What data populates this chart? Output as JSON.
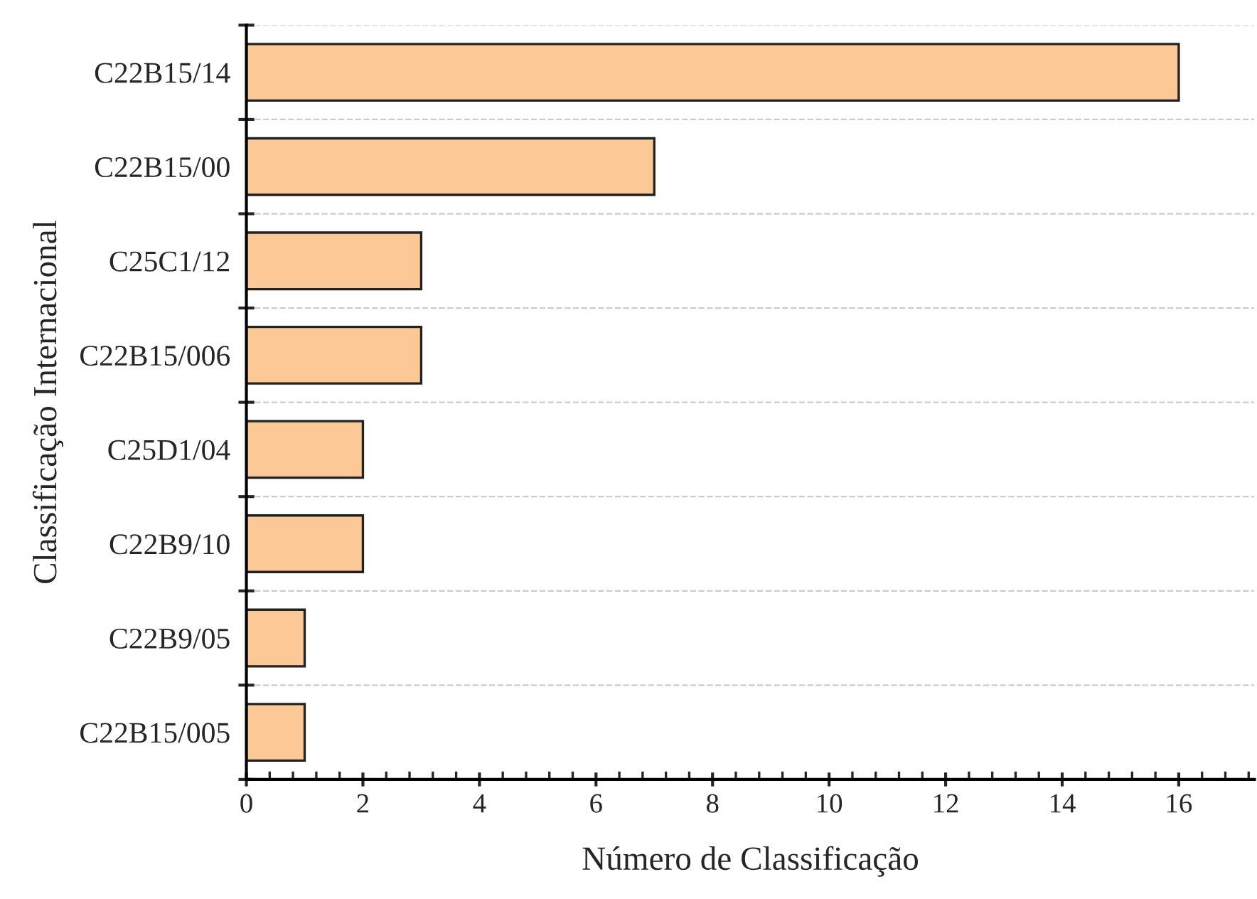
{
  "chart_data": {
    "type": "bar",
    "orientation": "horizontal",
    "xlabel": "Número de Classificação",
    "ylabel": "Classificação Internacional",
    "categories": [
      "C22B15/14",
      "C22B15/00",
      "C25C1/12",
      "C22B15/006",
      "C25D1/04",
      "C22B9/10",
      "C22B9/05",
      "C22B15/005"
    ],
    "values": [
      16,
      7,
      3,
      3,
      2,
      2,
      1,
      1
    ],
    "color": "#fbc896",
    "xlim": [
      0,
      17.3
    ],
    "xticks": [
      0,
      2,
      4,
      6,
      8,
      10,
      12,
      14,
      16
    ],
    "grid": "y"
  }
}
